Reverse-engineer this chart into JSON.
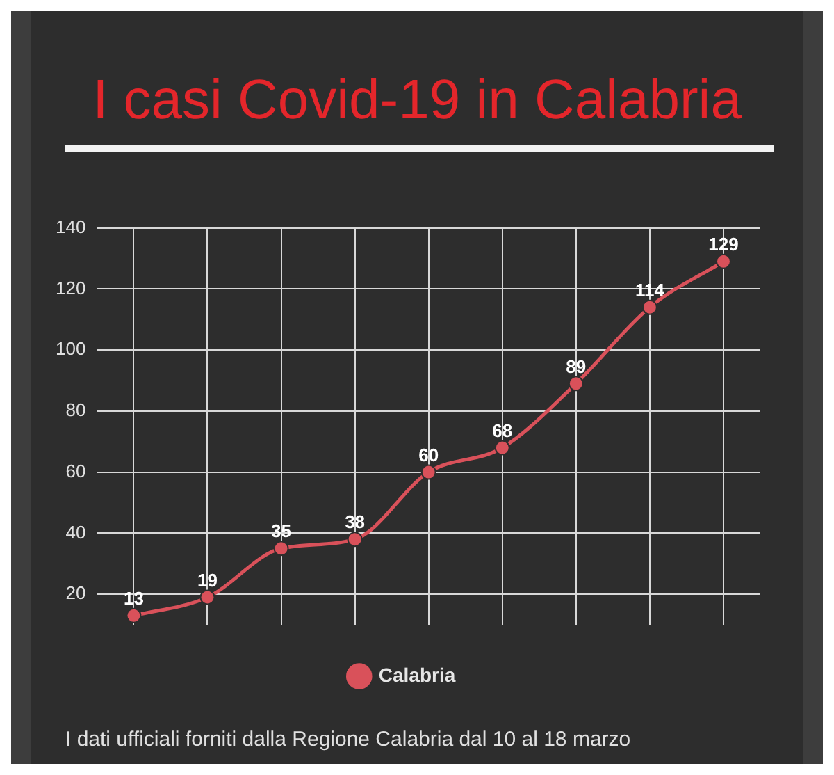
{
  "chart_data": {
    "type": "line",
    "title": "I casi Covid-19 in Calabria",
    "categories": [
      null,
      null,
      null,
      null,
      null,
      null,
      null,
      null,
      null
    ],
    "series": [
      {
        "name": "Calabria",
        "color": "#d9515a",
        "values": [
          13,
          19,
          35,
          38,
          60,
          68,
          89,
          114,
          129
        ]
      }
    ],
    "ylim": [
      10,
      140
    ],
    "yticks": [
      20,
      40,
      60,
      80,
      100,
      120,
      140
    ],
    "grid": true,
    "legend": "bottom",
    "marker": "circle",
    "data_labels": true,
    "annotations": [
      "I dati ufficiali forniti dalla Regione Calabria dal 10 al 18 marzo"
    ]
  }
}
